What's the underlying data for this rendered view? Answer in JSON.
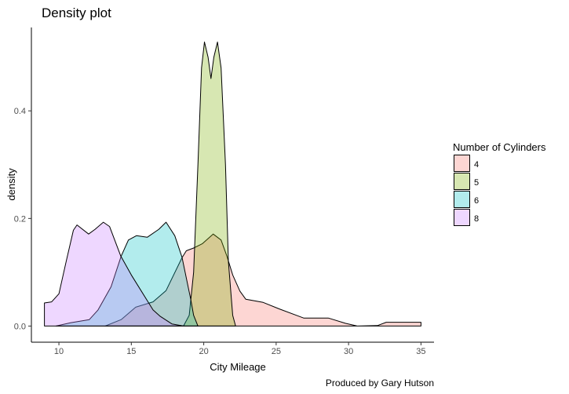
{
  "chart_data": {
    "type": "area",
    "title": "Density plot",
    "xlabel": "City Mileage",
    "ylabel": "density",
    "caption": "Produced by Gary Hutson",
    "xlim": [
      8.1,
      35.9
    ],
    "ylim": [
      -0.03,
      0.555
    ],
    "x_ticks": [
      10,
      15,
      20,
      25,
      30,
      35
    ],
    "y_ticks": [
      0.0,
      0.2,
      0.4
    ],
    "y_tick_labels": [
      "0.0",
      "0.2",
      "0.4"
    ],
    "grid": false,
    "legend": {
      "title": "Number of Cylinders",
      "position": "right"
    },
    "fill_opacity": 0.3,
    "series": [
      {
        "name": "4",
        "color": "#F8766D",
        "x": [
          13.2,
          14.3,
          15.3,
          16.5,
          17.4,
          18.5,
          18.8,
          19.3,
          19.9,
          20.65,
          21.2,
          21.6,
          22.0,
          22.5,
          22.9,
          24.1,
          25.2,
          26.9,
          28.6,
          29.8,
          30.6,
          32.0,
          32.6,
          35.0
        ],
        "y": [
          0,
          0.012,
          0.035,
          0.045,
          0.066,
          0.127,
          0.14,
          0.145,
          0.153,
          0.171,
          0.16,
          0.13,
          0.095,
          0.065,
          0.05,
          0.044,
          0.032,
          0.015,
          0.015,
          0.005,
          0,
          0.001,
          0.007,
          0.007
        ]
      },
      {
        "name": "5",
        "color": "#7CAE00",
        "x": [
          18.6,
          19.0,
          19.3,
          19.6,
          19.85,
          20.05,
          20.3,
          20.5,
          20.7,
          20.95,
          21.2,
          21.5,
          21.7,
          22.0,
          22.2
        ],
        "y": [
          0,
          0.02,
          0.1,
          0.3,
          0.48,
          0.528,
          0.5,
          0.46,
          0.5,
          0.528,
          0.48,
          0.3,
          0.12,
          0.02,
          0
        ]
      },
      {
        "name": "6",
        "color": "#00BFC4",
        "x": [
          9.8,
          10.8,
          12.1,
          12.7,
          13.6,
          14.3,
          14.8,
          15.35,
          16.1,
          16.9,
          17.4,
          18.0,
          18.5,
          19.1,
          19.3,
          19.6
        ],
        "y": [
          0,
          0.006,
          0.012,
          0.03,
          0.073,
          0.13,
          0.16,
          0.168,
          0.165,
          0.18,
          0.193,
          0.168,
          0.128,
          0.05,
          0.02,
          0
        ]
      },
      {
        "name": "8",
        "color": "#C77CFF",
        "x": [
          9.0,
          9.5,
          10.0,
          10.5,
          11.0,
          11.25,
          12.05,
          12.5,
          13.07,
          13.5,
          14.27,
          15.0,
          16.5,
          17.0,
          17.8,
          18.6
        ],
        "y": [
          0.043,
          0.045,
          0.06,
          0.12,
          0.178,
          0.188,
          0.171,
          0.18,
          0.193,
          0.185,
          0.13,
          0.095,
          0.03,
          0.018,
          0.004,
          0
        ]
      }
    ]
  }
}
